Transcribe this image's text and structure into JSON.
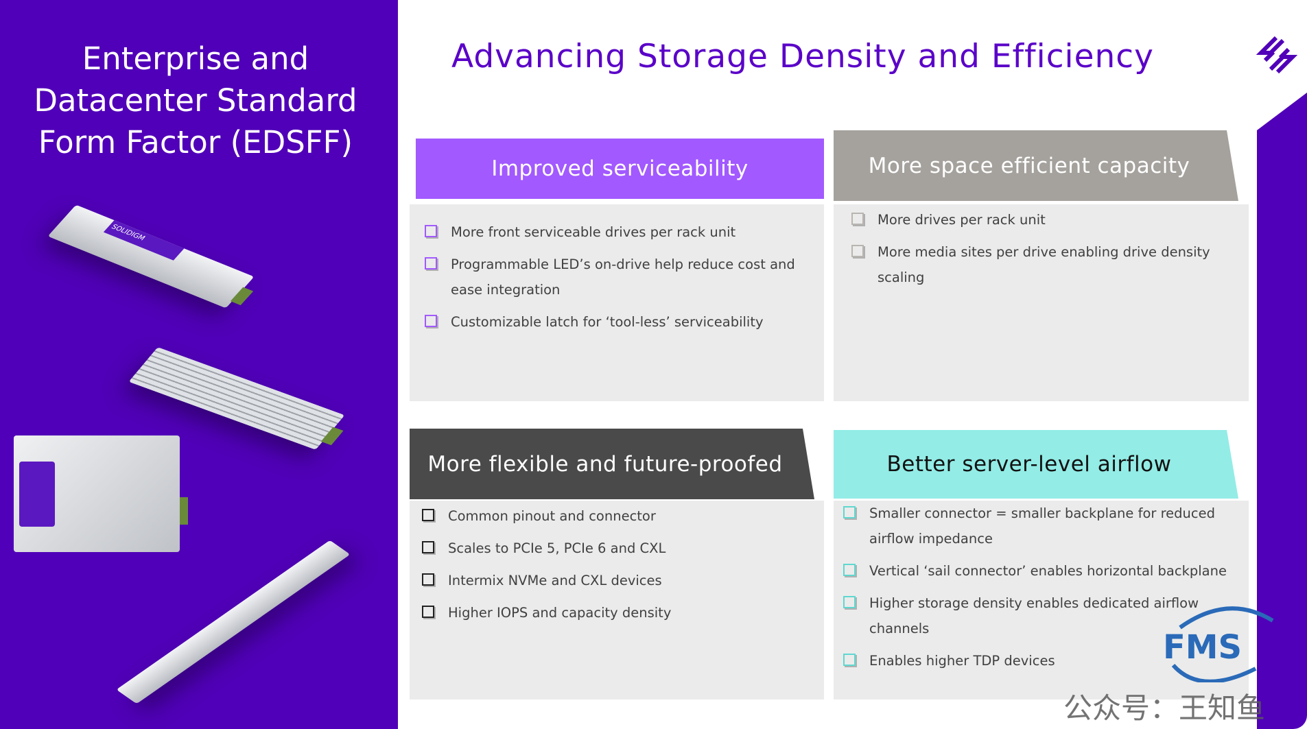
{
  "left_title": "Enterprise and\nDatacenter Standard\nForm Factor (EDSFF)",
  "title": "Advancing Storage Density and Efficiency",
  "colors": {
    "purple": "#5000b8",
    "title": "#5a00c8",
    "serviceability": "#a259ff",
    "capacity": "#a5a29d",
    "flexible": "#4a4a4a",
    "airflow": "#93ece6"
  },
  "panels": [
    {
      "title": "Improved serviceability",
      "bullets": [
        "More front serviceable drives per rack unit",
        "Programmable LED’s on-drive help reduce cost and ease integration",
        "Customizable latch for ‘tool-less’ serviceability"
      ]
    },
    {
      "title": "More space efficient capacity",
      "bullets": [
        "More drives per rack unit",
        "More media sites per drive enabling drive density scaling"
      ]
    },
    {
      "title": "More flexible and future-proofed",
      "bullets": [
        "Common pinout and connector",
        "Scales to PCIe 5, PCIe 6 and CXL",
        "Intermix NVMe and CXL devices",
        "Higher IOPS and capacity density"
      ]
    },
    {
      "title": "Better server-level airflow",
      "bullets": [
        "Smaller connector = smaller backplane for reduced airflow impedance",
        "Vertical ‘sail connector’ enables horizontal backplane",
        "Higher storage density enables dedicated airflow channels",
        "Enables higher TDP devices"
      ]
    }
  ],
  "drive_label": "SOLIDIGM",
  "watermark": "公众号：王知鱼",
  "watermark_logo": "FMS"
}
